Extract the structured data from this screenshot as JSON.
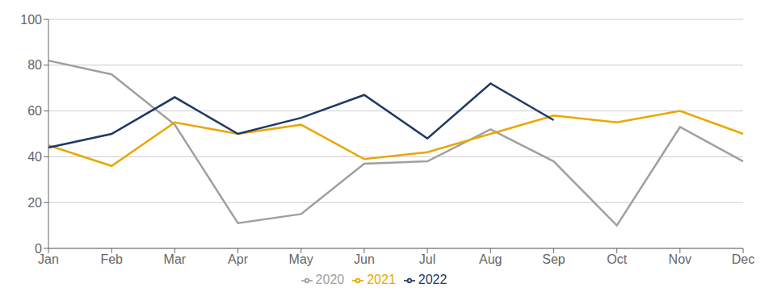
{
  "chart_data": {
    "type": "line",
    "categories": [
      "Jan",
      "Feb",
      "Mar",
      "Apr",
      "May",
      "Jun",
      "Jul",
      "Aug",
      "Sep",
      "Oct",
      "Nov",
      "Dec"
    ],
    "series": [
      {
        "name": "2020",
        "color": "#A0A0A0",
        "values": [
          82,
          76,
          54,
          11,
          15,
          37,
          38,
          52,
          38,
          10,
          53,
          38
        ]
      },
      {
        "name": "2021",
        "color": "#E8A800",
        "values": [
          45,
          36,
          55,
          50,
          54,
          39,
          42,
          50,
          58,
          55,
          60,
          50
        ]
      },
      {
        "name": "2022",
        "color": "#1F3864",
        "values": [
          44,
          50,
          66,
          50,
          57,
          67,
          48,
          72,
          56,
          null,
          null,
          null
        ]
      }
    ],
    "ylim": [
      0,
      100
    ],
    "yticks": [
      0,
      20,
      40,
      60,
      80,
      100
    ],
    "grid": true,
    "legend": "bottom"
  }
}
